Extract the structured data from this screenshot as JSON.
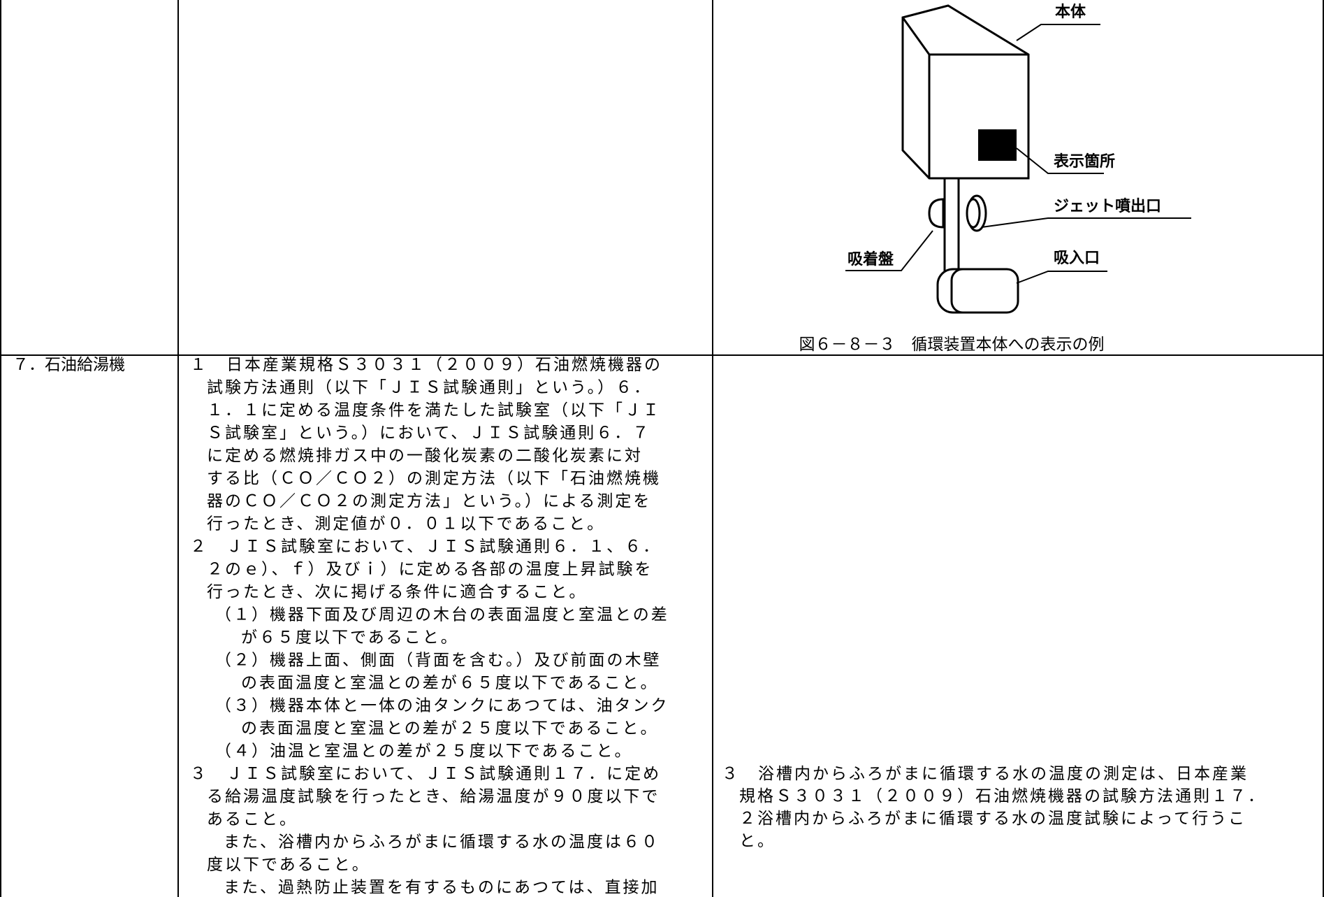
{
  "figure": {
    "labels": {
      "body": "本体",
      "display": "表示箇所",
      "jet": "ジェット噴出口",
      "sucker": "吸着盤",
      "intake": "吸入口"
    },
    "caption": "図６－８－３　循環装置本体への表示の例"
  },
  "table": {
    "row": {
      "item": "７．石油給湯機",
      "requirements": [
        "１　日本産業規格Ｓ３０３１（２００９）石油燃焼機器の",
        "試験方法通則（以下「ＪＩＳ試験通則」という。）６．",
        "１．１に定める温度条件を満たした試験室（以下「ＪＩ",
        "Ｓ試験室」という。）において、ＪＩＳ試験通則６．７",
        "に定める燃焼排ガス中の一酸化炭素の二酸化炭素に対",
        "する比（ＣＯ／ＣＯ２）の測定方法（以下「石油燃焼機",
        "器のＣＯ／ＣＯ２の測定方法」という。）による測定を",
        "行ったとき、測定値が０．０１以下であること。",
        "２　ＪＩＳ試験室において、ＪＩＳ試験通則６．１、６．",
        "２のｅ）、ｆ）及びｉ）に定める各部の温度上昇試験を",
        "行ったとき、次に掲げる条件に適合すること。",
        "（１）機器下面及び周辺の木台の表面温度と室温との差",
        "が６５度以下であること。",
        "（２）機器上面、側面（背面を含む。）及び前面の木壁",
        "の表面温度と室温との差が６５度以下であること。",
        "（３）機器本体と一体の油タンクにあつては、油タンク",
        "の表面温度と室温との差が２５度以下であること。",
        "（４）油温と室温との差が２５度以下であること。",
        "３　ＪＩＳ試験室において、ＪＩＳ試験通則１７．に定め",
        "る給湯温度試験を行ったとき、給湯温度が９０度以下で",
        "あること。",
        "また、浴槽内からふろがまに循環する水の温度は６０",
        "度以下であること。",
        "また、過熱防止装置を有するものにあつては、直接加"
      ],
      "note": [
        "３　浴槽内からふろがまに循環する水の温度の測定は、日本産業",
        "規格Ｓ３０３１（２００９）石油燃焼機器の試験方法通則１７．",
        "２浴槽内からふろがまに循環する水の温度試験によって行うこ",
        "と。"
      ]
    }
  }
}
